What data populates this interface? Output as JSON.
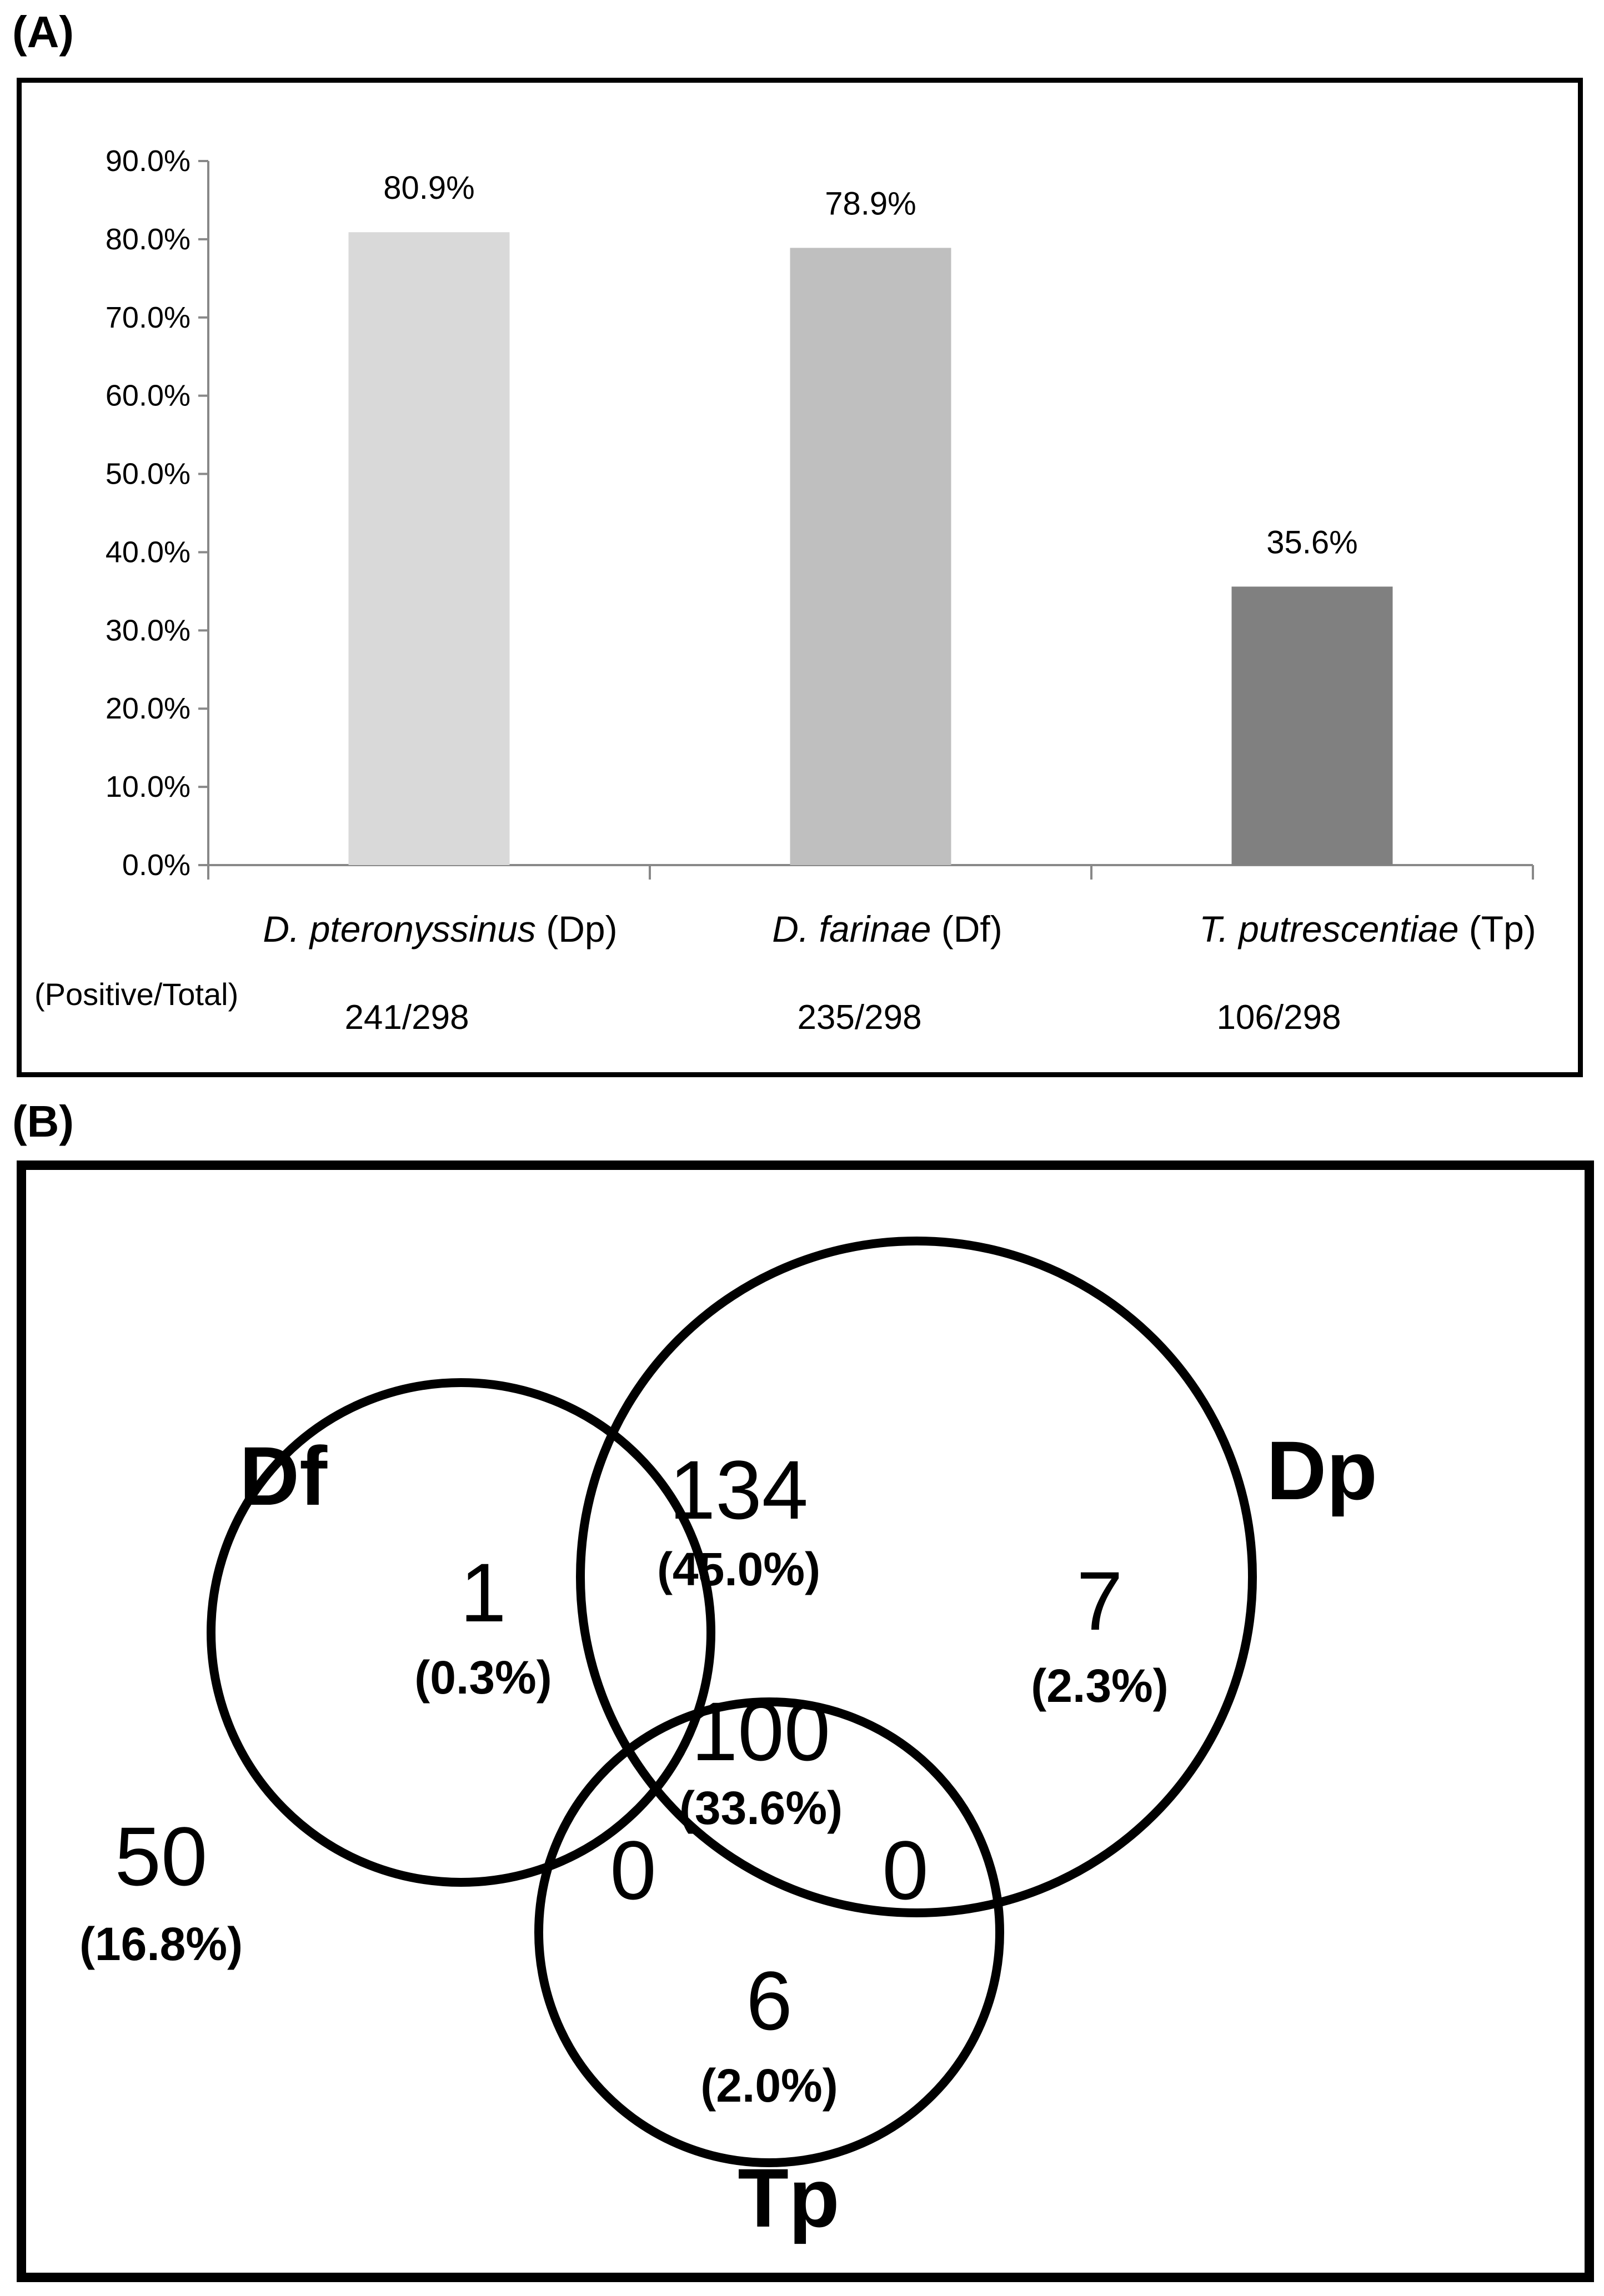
{
  "panel_a": {
    "label": "(A)"
  },
  "panel_b": {
    "label": "(B)"
  },
  "chart_data": [
    {
      "type": "bar",
      "categories": [
        {
          "italic": "D. pteronyssinus",
          "suffix": " (Dp)"
        },
        {
          "italic": "D.  farinae",
          "suffix": " (Df)"
        },
        {
          "italic": "T. putrescentiae",
          "suffix": " (Tp)"
        }
      ],
      "values": [
        80.9,
        78.9,
        35.6
      ],
      "data_labels": [
        "80.9%",
        "78.9%",
        "35.6%"
      ],
      "bar_colors": [
        "#d9d9d9",
        "#bfbfbf",
        "#808080"
      ],
      "ylim": [
        0,
        90
      ],
      "y_ticks": [
        "0.0%",
        "10.0%",
        "20.0%",
        "30.0%",
        "40.0%",
        "50.0%",
        "60.0%",
        "70.0%",
        "80.0%",
        "90.0%"
      ],
      "ratio_label": "(Positive/Total)",
      "ratios": [
        "241/298",
        "235/298",
        "106/298"
      ],
      "title": "",
      "xlabel": "",
      "ylabel": "",
      "grid": false
    },
    {
      "type": "venn",
      "sets": [
        "Df",
        "Dp",
        "Tp"
      ],
      "regions": [
        {
          "name": "df-only",
          "count": "1",
          "percent": "(0.3%)"
        },
        {
          "name": "df-dp",
          "count": "134",
          "percent": "(45.0%)"
        },
        {
          "name": "dp-only",
          "count": "7",
          "percent": "(2.3%)"
        },
        {
          "name": "all-three",
          "count": "100",
          "percent": "(33.6%)"
        },
        {
          "name": "df-tp",
          "count": "0",
          "percent": ""
        },
        {
          "name": "dp-tp",
          "count": "0",
          "percent": ""
        },
        {
          "name": "tp-only",
          "count": "6",
          "percent": "(2.0%)"
        },
        {
          "name": "none",
          "count": "50",
          "percent": "(16.8%)"
        }
      ]
    }
  ]
}
